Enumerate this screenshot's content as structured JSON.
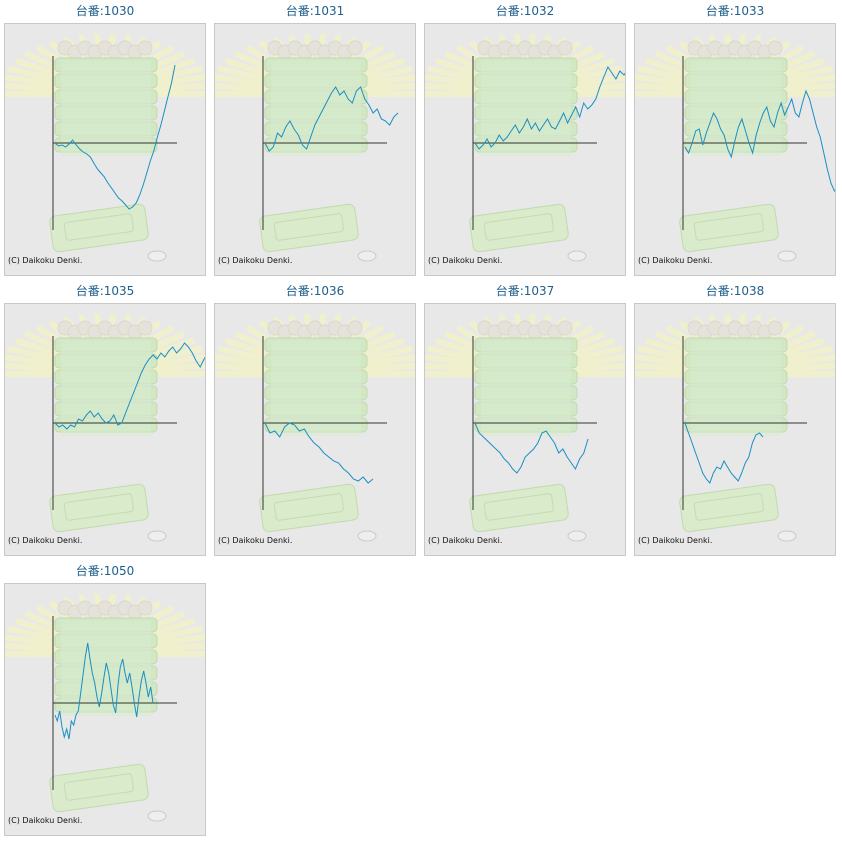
{
  "copyright": "(C) Daikoku Denki.",
  "colors": {
    "line": "#1a8fc4",
    "axis": "#333333",
    "title": "#1f5f8b",
    "panel": "#e8e8e8"
  },
  "chart_data": [
    {
      "type": "line",
      "title": "台番:1030",
      "values": [
        0,
        -3,
        -2,
        -4,
        -1,
        3,
        -2,
        -6,
        -9,
        -11,
        -14,
        -20,
        -26,
        -30,
        -34,
        -40,
        -45,
        -50,
        -55,
        -58,
        -62,
        -66,
        -64,
        -60,
        -52,
        -42,
        -30,
        -18,
        -8,
        6,
        18,
        32,
        46,
        60,
        78
      ]
    },
    {
      "type": "line",
      "title": "台番:1031",
      "values": [
        0,
        -8,
        -4,
        10,
        6,
        16,
        22,
        14,
        8,
        -2,
        -6,
        6,
        18,
        26,
        34,
        42,
        50,
        56,
        48,
        52,
        44,
        40,
        52,
        56,
        44,
        38,
        30,
        34,
        24,
        22,
        18,
        26,
        30
      ]
    },
    {
      "type": "line",
      "title": "台番:1032",
      "values": [
        0,
        -6,
        -2,
        4,
        -4,
        0,
        8,
        2,
        6,
        12,
        18,
        10,
        16,
        24,
        14,
        20,
        12,
        18,
        24,
        16,
        14,
        22,
        30,
        20,
        28,
        36,
        26,
        40,
        34,
        38,
        44,
        56,
        66,
        76,
        70,
        64,
        72,
        68,
        74
      ]
    },
    {
      "type": "line",
      "title": "台番:1033",
      "values": [
        -4,
        -10,
        0,
        12,
        14,
        -2,
        10,
        20,
        30,
        24,
        14,
        8,
        -6,
        -14,
        2,
        16,
        24,
        12,
        0,
        -10,
        8,
        20,
        30,
        36,
        22,
        16,
        30,
        40,
        28,
        36,
        44,
        30,
        26,
        40,
        52,
        44,
        30,
        16,
        6,
        -10,
        -26,
        -40,
        -48,
        -44
      ]
    },
    {
      "type": "line",
      "title": "台番:1035",
      "values": [
        0,
        -4,
        -2,
        -6,
        -2,
        -4,
        4,
        2,
        8,
        12,
        6,
        10,
        4,
        0,
        2,
        8,
        -2,
        0,
        10,
        20,
        30,
        40,
        50,
        58,
        64,
        68,
        64,
        70,
        66,
        72,
        76,
        70,
        74,
        80,
        76,
        70,
        62,
        56,
        64,
        70
      ]
    },
    {
      "type": "line",
      "title": "台番:1036",
      "values": [
        0,
        -10,
        -8,
        -14,
        -4,
        0,
        -2,
        -8,
        -6,
        -14,
        -20,
        -24,
        -30,
        -34,
        -38,
        -40,
        -46,
        -50,
        -56,
        -58,
        -54,
        -60,
        -56
      ]
    },
    {
      "type": "line",
      "title": "台番:1037",
      "values": [
        0,
        -10,
        -14,
        -18,
        -22,
        -26,
        -30,
        -36,
        -40,
        -46,
        -50,
        -44,
        -34,
        -30,
        -26,
        -20,
        -10,
        -8,
        -14,
        -20,
        -30,
        -26,
        -34,
        -40,
        -46,
        -36,
        -30,
        -16
      ]
    },
    {
      "type": "line",
      "title": "台番:1038",
      "values": [
        0,
        -10,
        -20,
        -30,
        -40,
        -50,
        -56,
        -60,
        -50,
        -44,
        -46,
        -38,
        -44,
        -50,
        -54,
        -58,
        -50,
        -40,
        -34,
        -20,
        -12,
        -10,
        -14
      ]
    },
    {
      "type": "line",
      "title": "台番:1050",
      "values": [
        -12,
        -18,
        -8,
        -24,
        -34,
        -26,
        -36,
        -18,
        -22,
        -12,
        -8,
        10,
        28,
        46,
        60,
        44,
        30,
        20,
        6,
        -4,
        10,
        26,
        40,
        30,
        14,
        -2,
        -10,
        18,
        36,
        44,
        30,
        20,
        30,
        16,
        0,
        -14,
        6,
        22,
        32,
        20,
        6,
        16,
        0
      ]
    }
  ]
}
